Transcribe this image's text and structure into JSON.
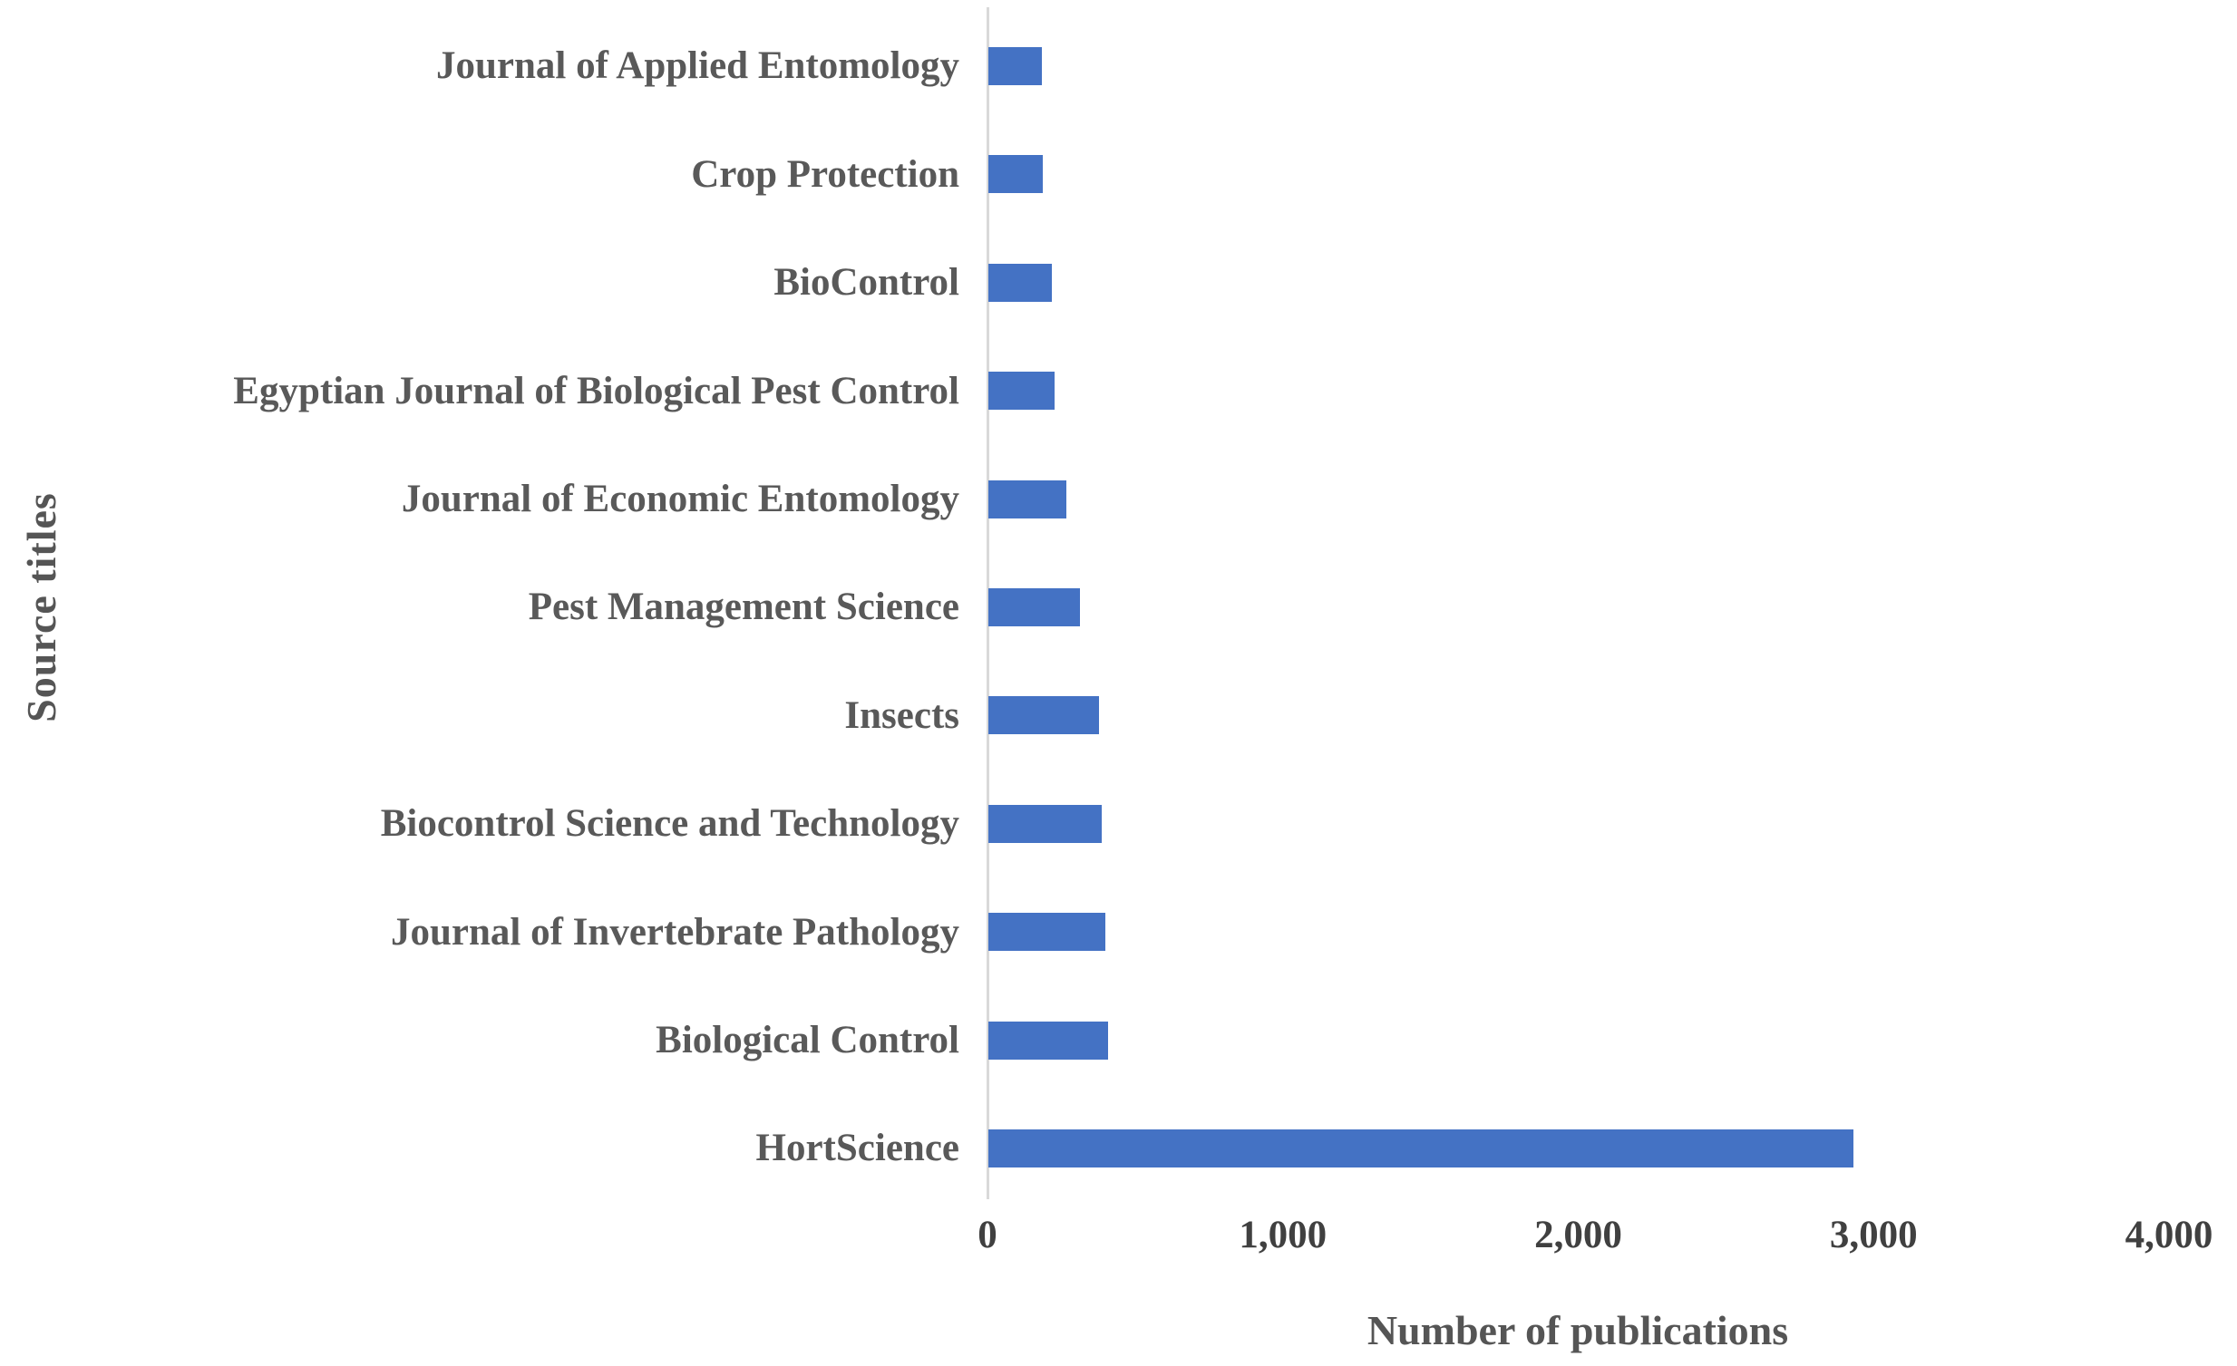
{
  "chart_data": {
    "type": "bar",
    "orientation": "horizontal",
    "title": "",
    "xlabel": "Number of publications",
    "ylabel": "Source titles",
    "categories": [
      "Journal of Applied Entomology",
      "Crop Protection",
      "BioControl",
      "Egyptian Journal of Biological Pest Control",
      "Journal of Economic Entomology",
      "Pest Management Science",
      "Insects",
      "Biocontrol Science and Technology",
      "Journal of Invertebrate Pathology",
      "Biological Control",
      "HortScience"
    ],
    "values": [
      180,
      185,
      215,
      225,
      265,
      310,
      375,
      385,
      395,
      405,
      2930
    ],
    "xlim": [
      0,
      4000
    ],
    "xtick_values": [
      0,
      1000,
      2000,
      3000,
      4000
    ],
    "xtick_labels": [
      "0",
      "1,000",
      "2,000",
      "3,000",
      "4,000"
    ],
    "grid": false,
    "legend": false,
    "colors": {
      "bar": "#4472C4",
      "category_label": "#595959",
      "tick_label": "#404040",
      "axis_title": "#555555",
      "axis_line": "#D9D9D9",
      "background": "#FFFFFF"
    }
  }
}
